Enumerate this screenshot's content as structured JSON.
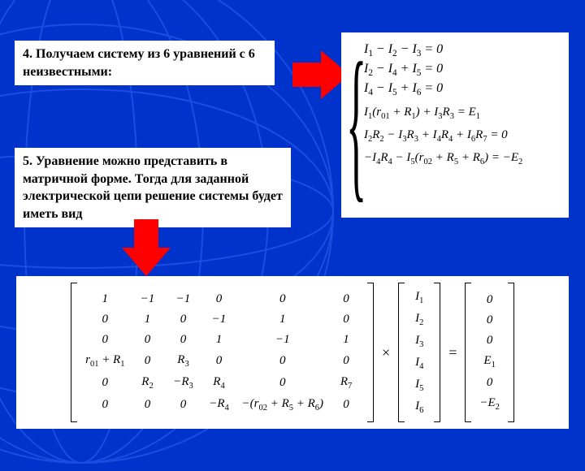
{
  "colors": {
    "bg": "#0033cc",
    "arrow": "#ff0000",
    "box_bg": "#ffffff",
    "text": "#000000",
    "globe_line": "#1a4de0"
  },
  "text1": "4. Получаем систему из 6 уравнений с 6 неизвестными:",
  "text2": "5. Уравнение можно представить в матричной форме. Тогда для заданной электрической цепи решение системы будет иметь вид",
  "equations": {
    "rows_simple": [
      "I₁ − I₂ − I₃ = 0",
      "I₂ − I₄ + I₅ = 0",
      "I₄ − I₅ + I₆ = 0"
    ],
    "rows_full": [
      "I₁(r₀₁ + R₁) + I₃R₃ = E₁",
      "I₂R₂ − I₃R₃ + I₄R₄ + I₆R₇ = 0",
      "−I₄R₄ − I₅(r₀₂ + R₅ + R₆) = −E₂"
    ]
  },
  "matrix": {
    "A": [
      [
        "1",
        "−1",
        "−1",
        "0",
        "0",
        "0"
      ],
      [
        "0",
        "1",
        "0",
        "−1",
        "1",
        "0"
      ],
      [
        "0",
        "0",
        "0",
        "1",
        "−1",
        "1"
      ],
      [
        "r₀₁ + R₁",
        "0",
        "R₃",
        "0",
        "0",
        "0"
      ],
      [
        "0",
        "R₂",
        "−R₃",
        "R₄",
        "0",
        "R₇"
      ],
      [
        "0",
        "0",
        "0",
        "−R₄",
        "−(r₀₂ + R₅ + R₆)",
        "0"
      ]
    ],
    "x": [
      "I₁",
      "I₂",
      "I₃",
      "I₄",
      "I₅",
      "I₆"
    ],
    "b": [
      "0",
      "0",
      "0",
      "E₁",
      "0",
      "−E₂"
    ],
    "op1": "×",
    "op2": "="
  },
  "fontsize": {
    "body": 16,
    "matrix": 15
  }
}
